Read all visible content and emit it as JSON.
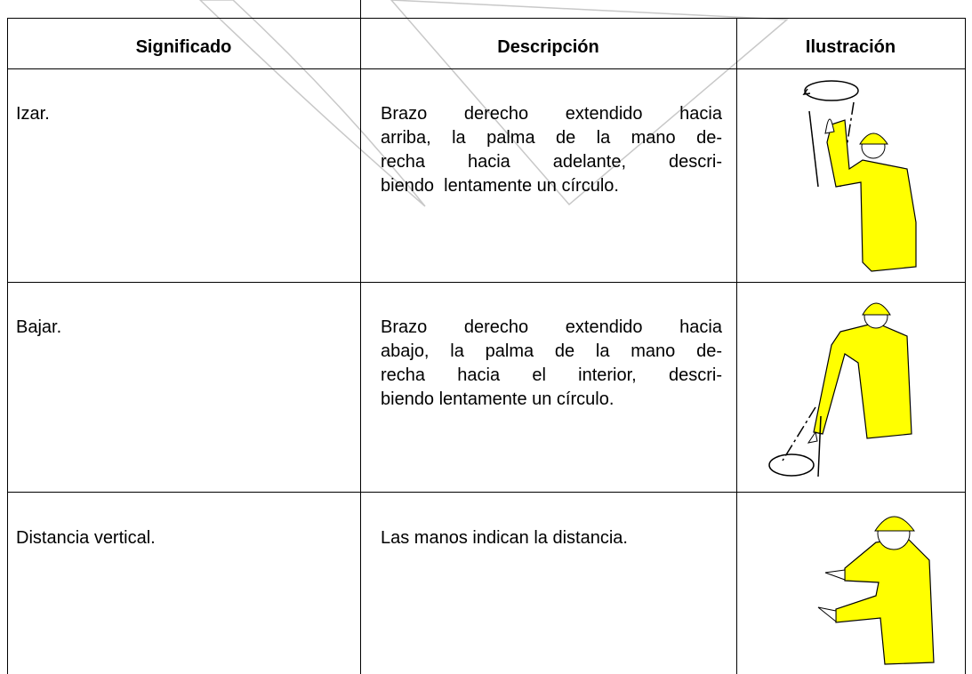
{
  "table": {
    "header": [
      "Significado",
      "Descripción",
      "Ilustración"
    ],
    "rows": [
      {
        "meaning": "Izar.",
        "description": [
          "Brazo derecho extendido hacia",
          "arriba, la palma de la mano de-",
          "recha hacia adelante, descri-",
          "biendo  lentamente un círculo."
        ]
      },
      {
        "meaning": "Bajar.",
        "description": [
          "Brazo derecho extendido hacia",
          "abajo, la palma de la mano de-",
          "recha hacia el interior, descri-",
          "biendo lentamente un círculo."
        ]
      },
      {
        "meaning": "Distancia vertical.",
        "description": [
          "Las manos indican la distancia."
        ]
      }
    ]
  }
}
